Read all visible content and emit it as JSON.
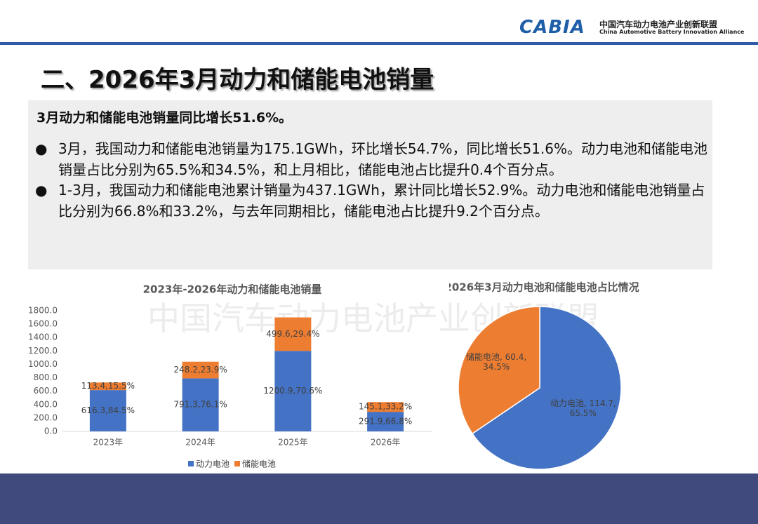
{
  "header": {
    "logo": "CABIA",
    "org_cn": "中国汽车动力电池产业创新联盟",
    "org_en": "China Automotive Battery Innovation Alliance"
  },
  "title": "二、2026年3月动力和储能电池销量",
  "summary": {
    "heading": "3月动力和储能电池销量同比增长51.6%。",
    "bullets": [
      "3月，我国动力和储能电池销量为175.1GWh，环比增长54.7%，同比增长51.6%。动力电池和储能电池销量占比分别为65.5%和34.5%，和上月相比，储能电池占比提升0.4个百分点。",
      "1-3月，我国动力和储能电池累计销量为437.1GWh，累计同比增长52.9%。动力电池和储能电池销量占比分别为66.8%和33.2%，与去年同期相比，储能电池占比提升9.2个百分点。"
    ]
  },
  "watermark": "中国汽车动力电池产业创新联盟",
  "chart_data": [
    {
      "type": "bar",
      "stacked": true,
      "title": "2023年-2026年动力和储能电池销量",
      "categories": [
        "2023年",
        "2024年",
        "2025年",
        "2026年"
      ],
      "series": [
        {
          "name": "动力电池",
          "color": "#4472c4",
          "values": [
            616.3,
            791.3,
            1200.9,
            291.9
          ],
          "value_labels": [
            "616.3,84.5%",
            "791.3,76.1%",
            "1200.9,70.6%",
            "291.9,66.8%"
          ]
        },
        {
          "name": "储能电池",
          "color": "#ed7d31",
          "values": [
            113.4,
            248.2,
            499.6,
            145.1
          ],
          "value_labels": [
            "113.4,15.5%",
            "248.2,23.9%",
            "499.6,29.4%",
            "145.1,33.2%"
          ]
        }
      ],
      "ylim": [
        0,
        1800
      ],
      "yticks": [
        {
          "value": 0,
          "label": "0.0"
        },
        {
          "value": 200,
          "label": "200.0"
        },
        {
          "value": 400,
          "label": "400.0"
        },
        {
          "value": 600,
          "label": "600.0"
        },
        {
          "value": 800,
          "label": "800.0"
        },
        {
          "value": 1000,
          "label": "1000.0"
        },
        {
          "value": 1200,
          "label": "1200.0"
        },
        {
          "value": 1400,
          "label": "1400.0"
        },
        {
          "value": 1600,
          "label": "1600.0"
        },
        {
          "value": 1800,
          "label": "1800.0"
        }
      ],
      "grid": false,
      "legend": "bottom"
    },
    {
      "type": "pie",
      "title": "2026年3月动力电池和储能电池占比情况",
      "categories": [
        "动力电池",
        "储能电池"
      ],
      "values": [
        114.7,
        60.4
      ],
      "colors": [
        "#4472c4",
        "#ed7d31"
      ],
      "value_labels": [
        "动力电池, 114.7, 65.5%",
        "储能电池, 60.4, 34.5%"
      ]
    }
  ]
}
